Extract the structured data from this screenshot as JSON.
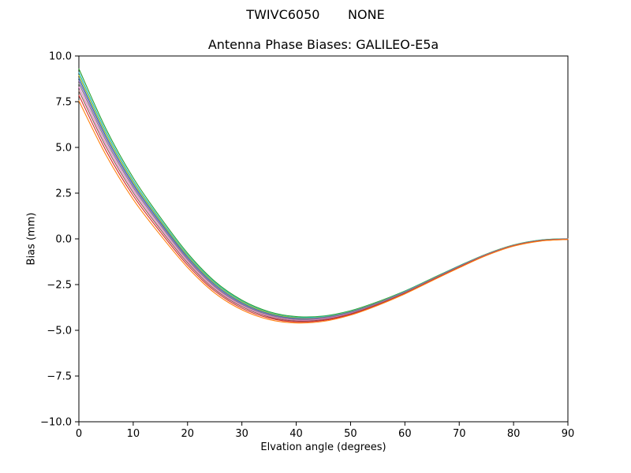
{
  "figure": {
    "suptitle": "TWIVC6050       NONE"
  },
  "chart_data": {
    "type": "line",
    "title": "Antenna Phase Biases: GALILEO-E5a",
    "xlabel": "Elvation angle (degrees)",
    "ylabel": "Bias (mm)",
    "xlim": [
      0,
      90
    ],
    "ylim": [
      -10,
      10
    ],
    "x_ticks": [
      0,
      10,
      20,
      30,
      40,
      50,
      60,
      70,
      80,
      90
    ],
    "x_tick_labels": [
      "0",
      "10",
      "20",
      "30",
      "40",
      "50",
      "60",
      "70",
      "80",
      "90"
    ],
    "y_ticks": [
      -10.0,
      -7.5,
      -5.0,
      -2.5,
      0.0,
      2.5,
      5.0,
      7.5,
      10.0
    ],
    "y_tick_labels": [
      "−10.0",
      "−7.5",
      "−5.0",
      "−2.5",
      "0.0",
      "2.5",
      "5.0",
      "7.5",
      "10.0"
    ],
    "grid": false,
    "legend": "none",
    "x": [
      0,
      5,
      10,
      15,
      20,
      25,
      30,
      35,
      40,
      45,
      50,
      55,
      60,
      65,
      70,
      75,
      80,
      85,
      90
    ],
    "series": [
      {
        "name": "s1",
        "color": "#2ca02c",
        "values": [
          9.3,
          6.01,
          3.34,
          1.17,
          -0.78,
          -2.32,
          -3.35,
          -3.98,
          -4.25,
          -4.22,
          -3.93,
          -3.44,
          -2.85,
          -2.16,
          -1.47,
          -0.83,
          -0.33,
          -0.06,
          0.01
        ]
      },
      {
        "name": "s2",
        "color": "#17becf",
        "values": [
          9.1,
          5.85,
          3.2,
          1.06,
          -0.87,
          -2.39,
          -3.41,
          -4.03,
          -4.29,
          -4.25,
          -3.96,
          -3.47,
          -2.87,
          -2.18,
          -1.48,
          -0.84,
          -0.34,
          -0.07,
          0.01
        ]
      },
      {
        "name": "s3",
        "color": "#bcbd22",
        "values": [
          8.95,
          5.72,
          3.1,
          0.98,
          -0.93,
          -2.44,
          -3.45,
          -4.06,
          -4.32,
          -4.28,
          -3.98,
          -3.48,
          -2.89,
          -2.19,
          -1.49,
          -0.84,
          -0.34,
          -0.08,
          0.0
        ]
      },
      {
        "name": "s4",
        "color": "#1f77b4",
        "values": [
          8.8,
          5.6,
          3.0,
          0.9,
          -1.0,
          -2.5,
          -3.5,
          -4.1,
          -4.35,
          -4.3,
          -4.0,
          -3.5,
          -2.9,
          -2.2,
          -1.5,
          -0.85,
          -0.35,
          -0.08,
          0.0
        ]
      },
      {
        "name": "s5",
        "color": "#9467bd",
        "values": [
          8.65,
          5.48,
          2.9,
          0.82,
          -1.07,
          -2.56,
          -3.55,
          -4.14,
          -4.38,
          -4.32,
          -4.02,
          -3.52,
          -2.91,
          -2.21,
          -1.51,
          -0.86,
          -0.36,
          -0.08,
          0.0
        ]
      },
      {
        "name": "s6",
        "color": "#7f7f7f",
        "values": [
          8.5,
          5.35,
          2.8,
          0.74,
          -1.13,
          -2.61,
          -3.59,
          -4.17,
          -4.41,
          -4.35,
          -4.04,
          -3.53,
          -2.93,
          -2.22,
          -1.52,
          -0.87,
          -0.36,
          -0.09,
          -0.01
        ]
      },
      {
        "name": "s7",
        "color": "#e377c2",
        "values": [
          8.3,
          5.19,
          2.67,
          0.63,
          -1.22,
          -2.68,
          -3.65,
          -4.22,
          -4.45,
          -4.38,
          -4.07,
          -3.56,
          -2.95,
          -2.24,
          -1.53,
          -0.88,
          -0.37,
          -0.1,
          -0.01
        ]
      },
      {
        "name": "s8",
        "color": "#8c564b",
        "values": [
          8.1,
          5.03,
          2.53,
          0.52,
          -1.31,
          -2.76,
          -3.71,
          -4.27,
          -4.49,
          -4.42,
          -4.1,
          -3.58,
          -2.96,
          -2.25,
          -1.54,
          -0.89,
          -0.38,
          -0.1,
          -0.02
        ]
      },
      {
        "name": "s9",
        "color": "#d62728",
        "values": [
          7.85,
          4.82,
          2.36,
          0.38,
          -1.43,
          -2.85,
          -3.79,
          -4.33,
          -4.54,
          -4.46,
          -4.13,
          -3.61,
          -2.99,
          -2.27,
          -1.56,
          -0.9,
          -0.39,
          -0.11,
          -0.03
        ]
      },
      {
        "name": "s10",
        "color": "#ff7f0e",
        "values": [
          7.55,
          4.58,
          2.16,
          0.21,
          -1.56,
          -2.96,
          -3.88,
          -4.41,
          -4.6,
          -4.51,
          -4.17,
          -3.64,
          -3.01,
          -2.29,
          -1.58,
          -0.91,
          -0.4,
          -0.12,
          -0.03
        ]
      }
    ]
  }
}
